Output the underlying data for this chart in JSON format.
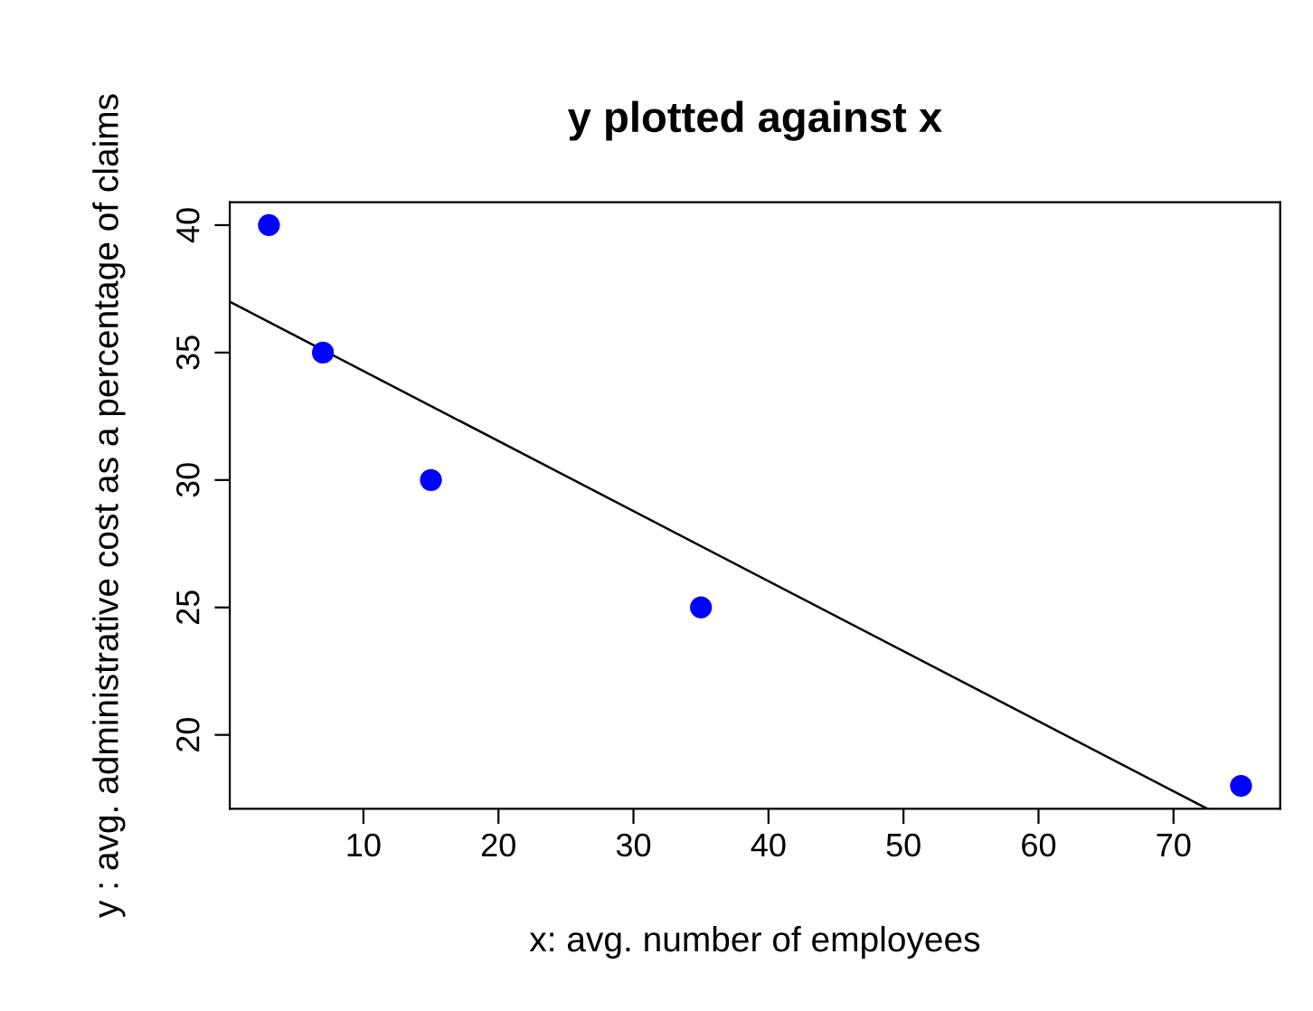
{
  "chart_data": {
    "type": "scatter",
    "title": "y plotted against x",
    "xlabel": "x: avg. number of employees",
    "ylabel": "y : avg. administrative cost as a percentage of claims",
    "series": [
      {
        "color": "#0000ff",
        "x": [
          3,
          7,
          15,
          35,
          75
        ],
        "values": [
          40,
          35,
          30,
          25,
          18
        ],
        "marker": "circle"
      },
      {
        "type": "line",
        "color": "#000000",
        "x": [
          0.1,
          72.5
        ],
        "values": [
          37.0,
          17.1
        ],
        "marker": "none",
        "line_style": "solid"
      }
    ],
    "xlim": [
      0.1,
      77.9
    ],
    "ylim": [
      17.1,
      40.9
    ],
    "xticks": [
      10,
      20,
      30,
      40,
      50,
      60,
      70
    ],
    "yticks": [
      20,
      25,
      30,
      35,
      40
    ],
    "grid": false,
    "legend": false
  }
}
